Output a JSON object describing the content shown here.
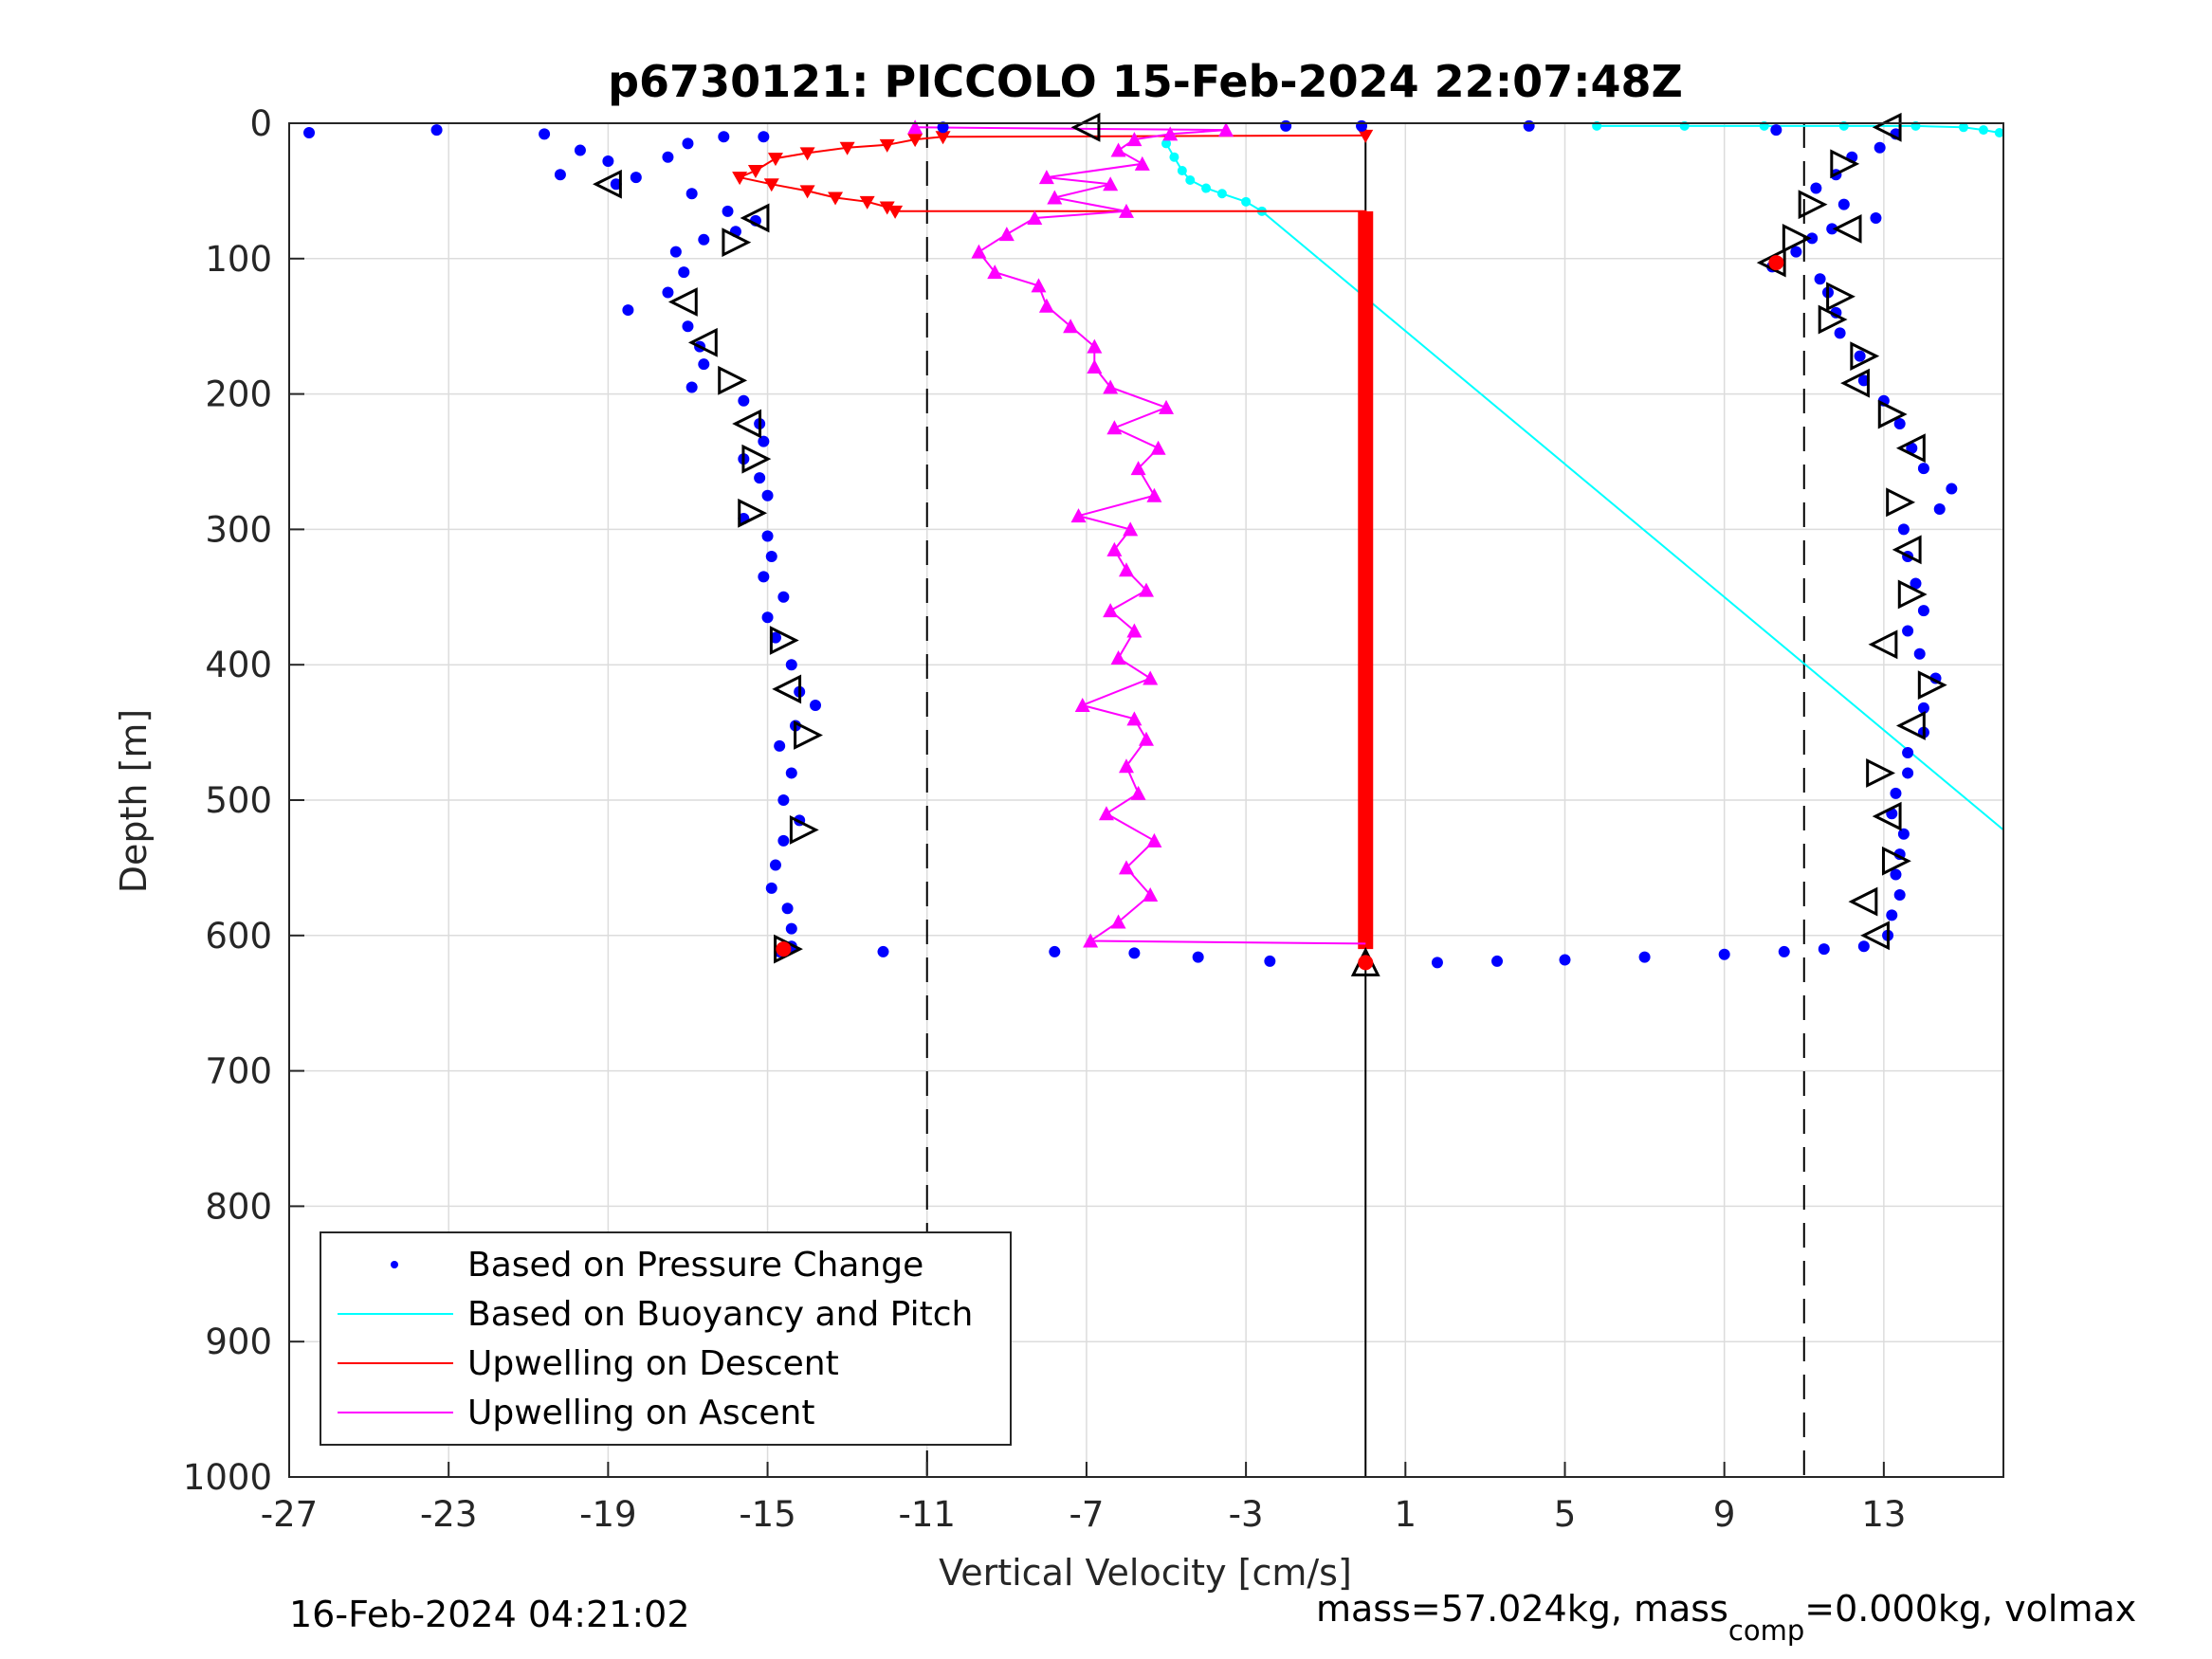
{
  "footer": {
    "timestamp": "16-Feb-2024 04:21:02",
    "mass_prefix": "mass=57.024kg, mass",
    "mass_sub": "comp",
    "mass_suffix": "=0.000kg, volmax"
  },
  "colors": {
    "pressure": "#0000ff",
    "buoyancy": "#00ffff",
    "descent": "#ff0000",
    "ascent": "#ff00ff",
    "markers": "#000000",
    "grid": "#dcdcdc"
  },
  "chart_data": {
    "type": "scatter",
    "title": "p6730121: PICCOLO 15-Feb-2024 22:07:48Z",
    "xlabel": "Vertical Velocity [cm/s]",
    "ylabel": "Depth [m]",
    "xlim": [
      -27,
      16
    ],
    "ylim": [
      0,
      1000
    ],
    "y_reversed": true,
    "grid": true,
    "xticks": [
      -27,
      -23,
      -19,
      -15,
      -11,
      -7,
      -3,
      1,
      5,
      9,
      13
    ],
    "xtick_labels": [
      "-27",
      "-23",
      "-19",
      "-15",
      "-11",
      "-7",
      "-3",
      "1",
      "5",
      "9",
      "13"
    ],
    "yticks": [
      0,
      100,
      200,
      300,
      400,
      500,
      600,
      700,
      800,
      900,
      1000
    ],
    "ytick_labels": [
      "0",
      "100",
      "200",
      "300",
      "400",
      "500",
      "600",
      "700",
      "800",
      "900",
      "1000"
    ],
    "legend_position": "bottom-left",
    "legend": [
      {
        "label": "Based on Pressure Change",
        "style": "dot",
        "color": "#0000ff"
      },
      {
        "label": "Based on Buoyancy and Pitch",
        "style": "line",
        "color": "#00ffff"
      },
      {
        "label": "Upwelling on Descent",
        "style": "line",
        "color": "#ff0000"
      },
      {
        "label": "Upwelling on Ascent",
        "style": "line",
        "color": "#ff00ff"
      }
    ],
    "reference_lines": {
      "dashed_x": [
        -11,
        11
      ],
      "solid_x": [
        0
      ]
    },
    "series": [
      {
        "name": "Based on Pressure Change",
        "style": "dot",
        "color": "#0000ff",
        "points": [
          [
            -26.5,
            7
          ],
          [
            -23.3,
            5
          ],
          [
            -20.6,
            8
          ],
          [
            -19.7,
            20
          ],
          [
            -19.0,
            28
          ],
          [
            -20.2,
            38
          ],
          [
            -18.8,
            45
          ],
          [
            -18.3,
            40
          ],
          [
            -17.5,
            25
          ],
          [
            -17.0,
            15
          ],
          [
            -16.1,
            10
          ],
          [
            -16.9,
            52
          ],
          [
            -16.0,
            65
          ],
          [
            -15.3,
            72
          ],
          [
            -15.8,
            80
          ],
          [
            -16.6,
            86
          ],
          [
            -17.3,
            95
          ],
          [
            -17.1,
            110
          ],
          [
            -17.5,
            125
          ],
          [
            -18.5,
            138
          ],
          [
            -17.0,
            150
          ],
          [
            -16.7,
            165
          ],
          [
            -16.6,
            178
          ],
          [
            -16.9,
            195
          ],
          [
            -15.6,
            205
          ],
          [
            -15.2,
            222
          ],
          [
            -15.1,
            235
          ],
          [
            -15.6,
            248
          ],
          [
            -15.2,
            262
          ],
          [
            -15.0,
            275
          ],
          [
            -15.6,
            292
          ],
          [
            -15.0,
            305
          ],
          [
            -14.9,
            320
          ],
          [
            -15.1,
            335
          ],
          [
            -14.6,
            350
          ],
          [
            -15.0,
            365
          ],
          [
            -14.8,
            380
          ],
          [
            -14.4,
            400
          ],
          [
            -14.2,
            420
          ],
          [
            -13.8,
            430
          ],
          [
            -14.3,
            445
          ],
          [
            -14.7,
            460
          ],
          [
            -14.4,
            480
          ],
          [
            -14.6,
            500
          ],
          [
            -14.2,
            515
          ],
          [
            -14.6,
            530
          ],
          [
            -14.8,
            548
          ],
          [
            -14.9,
            565
          ],
          [
            -14.5,
            580
          ],
          [
            -14.4,
            595
          ],
          [
            -14.4,
            608
          ],
          [
            -12.1,
            612
          ],
          [
            -7.8,
            612
          ],
          [
            -5.8,
            613
          ],
          [
            -4.2,
            616
          ],
          [
            -2.4,
            619
          ],
          [
            1.8,
            620
          ],
          [
            3.3,
            619
          ],
          [
            5.0,
            618
          ],
          [
            7.0,
            616
          ],
          [
            9.0,
            614
          ],
          [
            10.5,
            612
          ],
          [
            11.5,
            610
          ],
          [
            12.5,
            608
          ],
          [
            13.1,
            600
          ],
          [
            13.2,
            585
          ],
          [
            13.4,
            570
          ],
          [
            13.3,
            555
          ],
          [
            13.4,
            540
          ],
          [
            13.5,
            525
          ],
          [
            13.2,
            510
          ],
          [
            13.3,
            495
          ],
          [
            13.6,
            480
          ],
          [
            13.6,
            465
          ],
          [
            14.0,
            450
          ],
          [
            14.0,
            432
          ],
          [
            14.3,
            410
          ],
          [
            13.9,
            392
          ],
          [
            13.6,
            375
          ],
          [
            14.0,
            360
          ],
          [
            13.8,
            340
          ],
          [
            13.6,
            320
          ],
          [
            13.5,
            300
          ],
          [
            14.4,
            285
          ],
          [
            14.7,
            270
          ],
          [
            14.0,
            255
          ],
          [
            13.7,
            240
          ],
          [
            13.4,
            222
          ],
          [
            13.0,
            205
          ],
          [
            12.5,
            190
          ],
          [
            12.4,
            172
          ],
          [
            11.9,
            155
          ],
          [
            11.8,
            140
          ],
          [
            11.6,
            125
          ],
          [
            11.4,
            115
          ],
          [
            10.2,
            106
          ],
          [
            10.8,
            95
          ],
          [
            11.2,
            85
          ],
          [
            11.7,
            78
          ],
          [
            12.8,
            70
          ],
          [
            12.0,
            60
          ],
          [
            11.3,
            48
          ],
          [
            11.8,
            38
          ],
          [
            12.2,
            25
          ],
          [
            12.9,
            18
          ],
          [
            13.3,
            8
          ],
          [
            10.3,
            5
          ],
          [
            4.1,
            2
          ],
          [
            -0.1,
            2
          ],
          [
            -2.0,
            2
          ],
          [
            -10.6,
            3
          ],
          [
            -15.1,
            10
          ],
          [
            -14.7,
            612
          ]
        ]
      },
      {
        "name": "Based on Buoyancy and Pitch",
        "style": "line",
        "color": "#00ffff",
        "points": [
          [
            15.9,
            7
          ],
          [
            15.5,
            5
          ],
          [
            15.0,
            3
          ],
          [
            13.8,
            2
          ],
          [
            12.0,
            2
          ],
          [
            10.0,
            2
          ],
          [
            8.0,
            2
          ],
          [
            5.8,
            2
          ]
        ],
        "points_b": [
          [
            -5.0,
            15
          ],
          [
            -4.8,
            25
          ],
          [
            -4.6,
            35
          ],
          [
            -4.4,
            42
          ],
          [
            -4.0,
            48
          ],
          [
            -3.6,
            52
          ],
          [
            -3.0,
            58
          ],
          [
            -2.6,
            65
          ],
          [
            16.0,
            522
          ]
        ]
      },
      {
        "name": "Upwelling on Descent",
        "style": "line-triangle-down",
        "color": "#ff0000",
        "points": [
          [
            0.0,
            9
          ],
          [
            -10.6,
            10
          ],
          [
            -11.3,
            12
          ],
          [
            -12.0,
            16
          ],
          [
            -13.0,
            18
          ],
          [
            -14.0,
            22
          ],
          [
            -14.8,
            26
          ],
          [
            -15.3,
            35
          ],
          [
            -15.7,
            40
          ],
          [
            -14.9,
            45
          ],
          [
            -14.0,
            50
          ],
          [
            -13.3,
            55
          ],
          [
            -12.5,
            58
          ],
          [
            -12.0,
            62
          ],
          [
            -11.8,
            65
          ],
          [
            0.0,
            65
          ],
          [
            0.0,
            610
          ]
        ]
      },
      {
        "name": "Upwelling on Ascent",
        "style": "line-triangle-up",
        "color": "#ff00ff",
        "points": [
          [
            0.0,
            606
          ],
          [
            -6.9,
            604
          ],
          [
            -6.2,
            590
          ],
          [
            -5.4,
            570
          ],
          [
            -6.0,
            550
          ],
          [
            -5.3,
            530
          ],
          [
            -6.5,
            510
          ],
          [
            -5.7,
            495
          ],
          [
            -6.0,
            475
          ],
          [
            -5.5,
            455
          ],
          [
            -5.8,
            440
          ],
          [
            -7.1,
            430
          ],
          [
            -5.4,
            410
          ],
          [
            -6.2,
            395
          ],
          [
            -5.8,
            375
          ],
          [
            -6.4,
            360
          ],
          [
            -5.5,
            345
          ],
          [
            -6.0,
            330
          ],
          [
            -6.3,
            315
          ],
          [
            -5.9,
            300
          ],
          [
            -7.2,
            290
          ],
          [
            -5.3,
            275
          ],
          [
            -5.7,
            255
          ],
          [
            -5.2,
            240
          ],
          [
            -6.3,
            225
          ],
          [
            -5.0,
            210
          ],
          [
            -6.4,
            195
          ],
          [
            -6.8,
            180
          ],
          [
            -6.8,
            165
          ],
          [
            -7.4,
            150
          ],
          [
            -8.0,
            135
          ],
          [
            -8.2,
            120
          ],
          [
            -9.3,
            110
          ],
          [
            -9.7,
            95
          ],
          [
            -9.0,
            82
          ],
          [
            -8.3,
            70
          ],
          [
            -6.0,
            65
          ],
          [
            -7.8,
            55
          ],
          [
            -6.4,
            45
          ],
          [
            -8.0,
            40
          ],
          [
            -5.6,
            30
          ],
          [
            -6.2,
            20
          ],
          [
            -5.8,
            12
          ],
          [
            -4.9,
            8
          ],
          [
            -3.5,
            5
          ],
          [
            -11.3,
            3
          ]
        ]
      }
    ],
    "triangle_markers": [
      {
        "x": -19.0,
        "y": 45,
        "dir": "left"
      },
      {
        "x": -15.3,
        "y": 70,
        "dir": "left"
      },
      {
        "x": -15.8,
        "y": 88,
        "dir": "right"
      },
      {
        "x": -17.1,
        "y": 132,
        "dir": "left"
      },
      {
        "x": -16.6,
        "y": 162,
        "dir": "left"
      },
      {
        "x": -15.9,
        "y": 190,
        "dir": "right"
      },
      {
        "x": -15.5,
        "y": 222,
        "dir": "left"
      },
      {
        "x": -15.3,
        "y": 248,
        "dir": "right"
      },
      {
        "x": -15.4,
        "y": 288,
        "dir": "right"
      },
      {
        "x": -14.6,
        "y": 382,
        "dir": "right"
      },
      {
        "x": -14.5,
        "y": 418,
        "dir": "left"
      },
      {
        "x": -14.0,
        "y": 452,
        "dir": "right"
      },
      {
        "x": -14.1,
        "y": 522,
        "dir": "right"
      },
      {
        "x": -14.5,
        "y": 610,
        "dir": "right"
      },
      {
        "x": -7.0,
        "y": 3,
        "dir": "left"
      },
      {
        "x": 0.0,
        "y": 620,
        "dir": "up"
      },
      {
        "x": 13.1,
        "y": 3,
        "dir": "left"
      },
      {
        "x": 12.0,
        "y": 30,
        "dir": "right"
      },
      {
        "x": 11.2,
        "y": 60,
        "dir": "right"
      },
      {
        "x": 10.8,
        "y": 85,
        "dir": "right"
      },
      {
        "x": 12.1,
        "y": 78,
        "dir": "left"
      },
      {
        "x": 10.2,
        "y": 103,
        "dir": "left"
      },
      {
        "x": 11.9,
        "y": 128,
        "dir": "right"
      },
      {
        "x": 11.7,
        "y": 145,
        "dir": "right"
      },
      {
        "x": 12.5,
        "y": 172,
        "dir": "right"
      },
      {
        "x": 12.3,
        "y": 192,
        "dir": "left"
      },
      {
        "x": 13.2,
        "y": 215,
        "dir": "right"
      },
      {
        "x": 13.7,
        "y": 240,
        "dir": "left"
      },
      {
        "x": 13.4,
        "y": 280,
        "dir": "right"
      },
      {
        "x": 13.6,
        "y": 315,
        "dir": "left"
      },
      {
        "x": 13.7,
        "y": 348,
        "dir": "right"
      },
      {
        "x": 13.0,
        "y": 385,
        "dir": "left"
      },
      {
        "x": 14.2,
        "y": 415,
        "dir": "right"
      },
      {
        "x": 13.7,
        "y": 445,
        "dir": "left"
      },
      {
        "x": 12.9,
        "y": 480,
        "dir": "right"
      },
      {
        "x": 13.1,
        "y": 512,
        "dir": "left"
      },
      {
        "x": 13.3,
        "y": 545,
        "dir": "right"
      },
      {
        "x": 12.5,
        "y": 575,
        "dir": "left"
      },
      {
        "x": 12.8,
        "y": 600,
        "dir": "left"
      }
    ],
    "red_dots": [
      [
        -14.6,
        610
      ],
      [
        10.3,
        103
      ],
      [
        0.0,
        620
      ]
    ]
  }
}
